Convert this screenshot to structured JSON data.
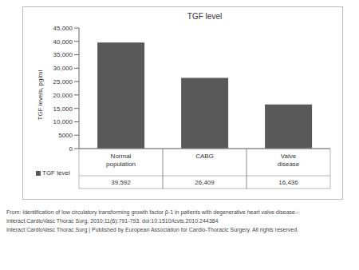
{
  "chart_data": {
    "type": "bar",
    "title": "TGF level",
    "y_label": "TGF levels, pg/ml",
    "categories": [
      "Normal population",
      "CABG",
      "Valve disease"
    ],
    "series": [
      {
        "name": "TGF level",
        "color": "#595959",
        "values": [
          39592,
          26409,
          16436
        ],
        "value_labels": [
          "39,592",
          "26,409",
          "16,436"
        ]
      }
    ],
    "data_labels": true,
    "ylim": [
      0,
      45000
    ],
    "yticks": [
      0,
      5000,
      {
        "value": 10000,
        "label": "10,000"
      },
      {
        "value": 15000,
        "label": "15,000"
      },
      {
        "value": 20000,
        "label": "20,000"
      },
      {
        "value": 25000,
        "label": "25,000"
      },
      {
        "value": 30000,
        "label": "30,000"
      },
      {
        "value": 35000,
        "label": "35,000"
      },
      {
        "value": 40000,
        "label": "40,000"
      },
      {
        "value": 45000,
        "label": "45,000"
      }
    ],
    "grid": false,
    "annotations": [
      "From: Identification of low circulatory transforming growth factor β-1 in patients with degenerative heart valve disease☆",
      "Interact CardioVasc Thorac Surg. 2010;11(6):791-793. doi:10.1510/icvts.2010.244384",
      "Interact CardioVasc Thorac Surg | Published by European Association for Cardio-Thoracic Surgery. All rights reserved."
    ]
  }
}
